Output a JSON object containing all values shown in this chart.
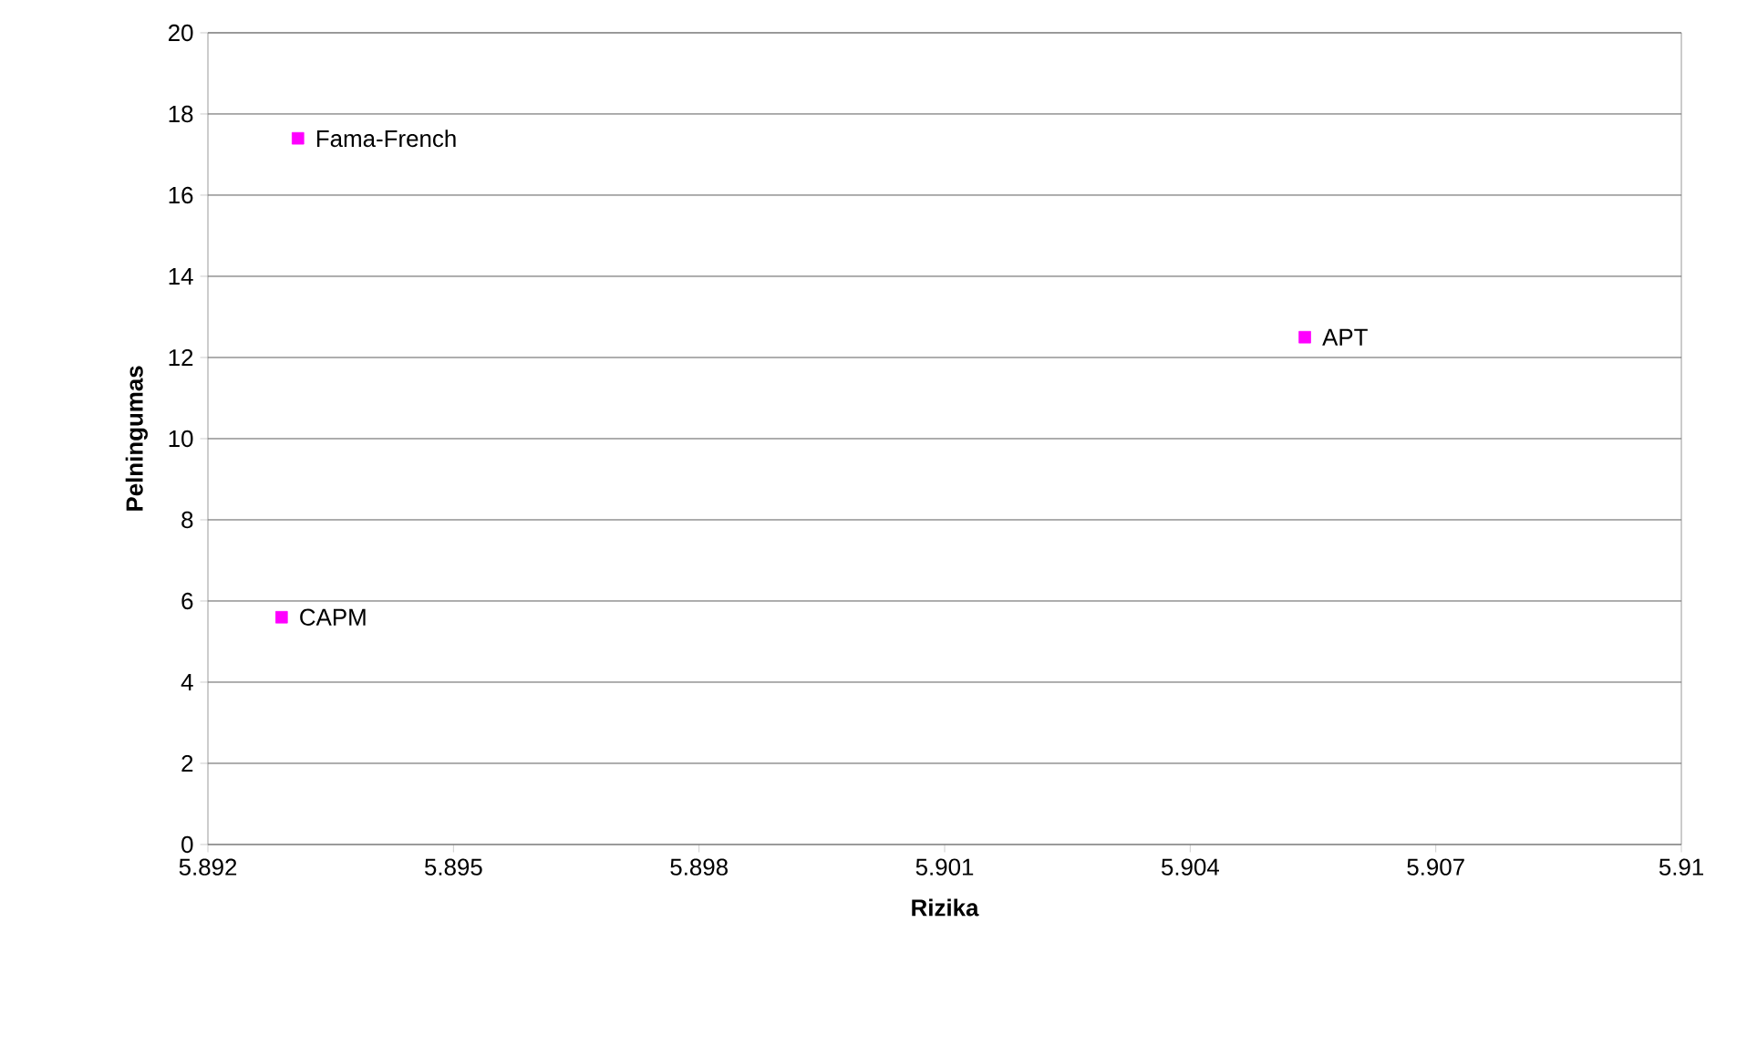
{
  "chart_data": {
    "type": "scatter",
    "xlabel": "Rizika",
    "ylabel": "Pelningumas",
    "x": [
      5.8929,
      5.8931,
      5.9054
    ],
    "values": [
      5.6,
      17.4,
      12.5
    ],
    "color": "#ff00ff",
    "marker": "square",
    "xlim": [
      5.892,
      5.91
    ],
    "xticks": [
      5.892,
      5.895,
      5.898,
      5.901,
      5.904,
      5.907,
      5.91
    ],
    "ylim": [
      0,
      20
    ],
    "yticks": [
      0,
      2,
      4,
      6,
      8,
      10,
      12,
      14,
      16,
      18,
      20
    ],
    "grid": "y",
    "annotations": [
      {
        "text": "CAPM",
        "x": 5.8929,
        "y": 5.6
      },
      {
        "text": "Fama-French",
        "x": 5.8931,
        "y": 17.4
      },
      {
        "text": "APT",
        "x": 5.9054,
        "y": 12.5
      }
    ]
  }
}
